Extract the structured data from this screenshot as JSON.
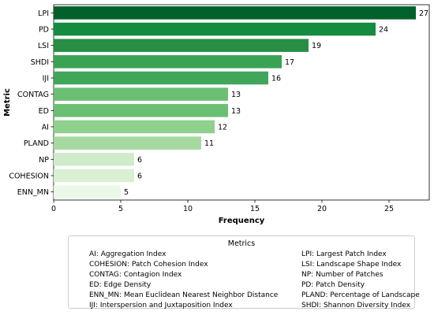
{
  "chart_data": {
    "type": "bar",
    "orientation": "horizontal",
    "categories": [
      "LPI",
      "PD",
      "LSI",
      "SHDI",
      "IJI",
      "CONTAG",
      "ED",
      "AI",
      "PLAND",
      "NP",
      "COHESION",
      "ENN_MN"
    ],
    "values": [
      27,
      24,
      19,
      17,
      16,
      13,
      13,
      12,
      11,
      6,
      6,
      5
    ],
    "colors": [
      "#00612b",
      "#138c3f",
      "#288e43",
      "#3aa353",
      "#3fa65a",
      "#6bbf72",
      "#6bbf72",
      "#8fd08c",
      "#a5d99f",
      "#cfebca",
      "#d9f0d3",
      "#ebf7e7"
    ],
    "xlabel": "Frequency",
    "ylabel": "Metric",
    "xlim": [
      0,
      28
    ],
    "xticks": [
      "0",
      "5",
      "10",
      "15",
      "20",
      "25"
    ],
    "grid": false,
    "legend_placement": "bottom"
  },
  "legend": {
    "title": "Metrics",
    "left": [
      "AI: Aggregation Index",
      "COHESION: Patch Cohesion Index",
      "CONTAG: Contagion Index",
      "ED: Edge Density",
      "ENN_MN: Mean Euclidean Nearest Neighbor Distance",
      "IJI: Interspersion and Juxtaposition Index"
    ],
    "right": [
      "LPI: Largest Patch Index",
      "LSI: Landscape Shape Index",
      "NP: Number of Patches",
      "PD: Patch Density",
      "PLAND: Percentage of Landscape",
      "SHDI: Shannon Diversity Index"
    ]
  }
}
